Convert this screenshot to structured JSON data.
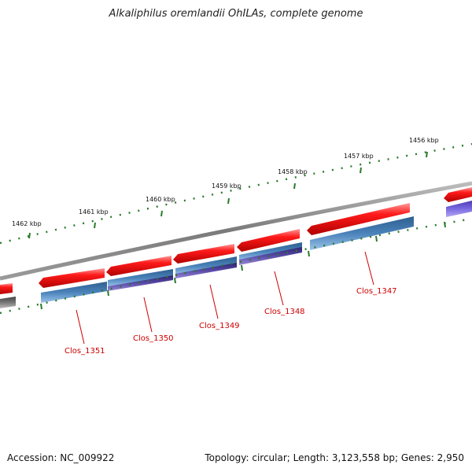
{
  "title": "Alkaliphilus oremlandii OhILAs, complete genome",
  "footer": {
    "accession": "Accession: NC_009922",
    "topology": "Topology: circular; Length: 3,123,558 bp; Genes: 2,950"
  },
  "colors": {
    "gene": "#ff0000",
    "cds_blue": "#4a7fb5",
    "cds_purple": "#5a4aa8",
    "cds_violet": "#7a6ae0",
    "backbone": "#888888",
    "ruler": "#2a7a2a",
    "gene_label": "#cc0000"
  },
  "ruler_ticks": [
    "1456 kbp",
    "1457 kbp",
    "1458 kbp",
    "1459 kbp",
    "1460 kbp",
    "1461 kbp",
    "1462 kbp"
  ],
  "genes": [
    {
      "label": "Clos_1347"
    },
    {
      "label": "Clos_1348"
    },
    {
      "label": "Clos_1349"
    },
    {
      "label": "Clos_1350"
    },
    {
      "label": "Clos_1351"
    }
  ]
}
